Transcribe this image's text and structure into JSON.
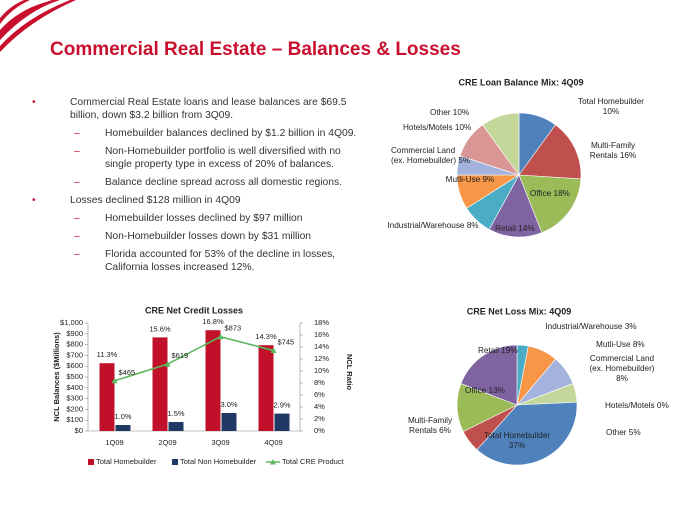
{
  "title": "Commercial Real Estate – Balances & Losses",
  "bullets": [
    {
      "text": "Commercial Real Estate loans and lease balances are $69.5 billion, down $3.2 billion from 3Q09.",
      "sub": [
        "Homebuilder balances declined by $1.2 billion in 4Q09.",
        "Non-Homebuilder portfolio is well diversified with no single property type in excess of 20% of balances.",
        "Balance decline spread across all domestic regions."
      ]
    },
    {
      "text": "Losses declined $128 million in 4Q09",
      "sub": [
        "Homebuilder losses declined by $97 million",
        "Non-Homebuilder losses down by $31 million",
        "Florida accounted for 53% of the decline in losses, California losses increased 12%."
      ]
    }
  ],
  "chart_data": [
    {
      "type": "pie",
      "title": "CRE Loan Balance Mix: 4Q09",
      "categories": [
        "Total Homebuilder",
        "Multi-Family Rentals",
        "Office",
        "Retail",
        "Industrial/Warehouse",
        "Mutli-Use",
        "Commercial Land (ex. Homebuilder)",
        "Hotels/Motels",
        "Other"
      ],
      "values": [
        10,
        16,
        18,
        14,
        8,
        9,
        5,
        10,
        10
      ],
      "value_labels": [
        "10%",
        "16%",
        "18%",
        "14%",
        "8%",
        "9%",
        "5%",
        "10%",
        "10%"
      ],
      "colors": [
        "#4f81bd",
        "#c0504d",
        "#9bbb59",
        "#8064a2",
        "#4bacc6",
        "#f79646",
        "#a3b3dd",
        "#da9694",
        "#c4d79b"
      ]
    },
    {
      "type": "combo",
      "title": "CRE Net Credit Losses",
      "categories": [
        "1Q09",
        "2Q09",
        "3Q09",
        "4Q09"
      ],
      "y_label": "NCL Balances ($Millions)",
      "y2_label": "NCL Ratio",
      "ylim": [
        0,
        1000
      ],
      "yticks": [
        {
          "value": 0,
          "label": "$0"
        },
        {
          "value": 100,
          "label": "$100"
        },
        {
          "value": 200,
          "label": "$200"
        },
        {
          "value": 300,
          "label": "$300"
        },
        {
          "value": 400,
          "label": "$400"
        },
        {
          "value": 500,
          "label": "$500"
        },
        {
          "value": 600,
          "label": "$600"
        },
        {
          "value": 700,
          "label": "$700"
        },
        {
          "value": 800,
          "label": "$800"
        },
        {
          "value": 900,
          "label": "$900"
        },
        {
          "value": 1000,
          "label": "$1,000"
        }
      ],
      "y2lim": [
        0,
        18
      ],
      "y2ticks": [
        {
          "value": 0,
          "label": "0%"
        },
        {
          "value": 2,
          "label": "2%"
        },
        {
          "value": 4,
          "label": "4%"
        },
        {
          "value": 6,
          "label": "6%"
        },
        {
          "value": 8,
          "label": "8%"
        },
        {
          "value": 10,
          "label": "10%"
        },
        {
          "value": 12,
          "label": "12%"
        },
        {
          "value": 14,
          "label": "14%"
        },
        {
          "value": 16,
          "label": "16%"
        },
        {
          "value": 18,
          "label": "18%"
        }
      ],
      "grid": false,
      "series": [
        {
          "name": "Total Homebuilder",
          "type": "bar",
          "axis": "y2",
          "color": "#c0102a",
          "values": [
            11.3,
            15.6,
            16.8,
            14.3
          ],
          "value_labels": [
            "11.3%",
            "15.6%",
            "16.8%",
            "14.3%"
          ]
        },
        {
          "name": "Total Non Homebuilder",
          "type": "bar",
          "axis": "y2",
          "color": "#1f3864",
          "values": [
            1.0,
            1.5,
            3.0,
            2.9
          ],
          "value_labels": [
            "1.0%",
            "1.5%",
            "3.0%",
            "2.9%"
          ]
        },
        {
          "name": "Total CRE Product",
          "type": "line",
          "color": "#5cb85c",
          "values": [
            465,
            619,
            873,
            745
          ],
          "value_labels": [
            "$465",
            "$619",
            "$873",
            "$745"
          ]
        }
      ]
    },
    {
      "type": "pie",
      "title": "CRE Net Loss Mix: 4Q09",
      "categories": [
        "Industrial/Warehouse",
        "Mutli-Use",
        "Commercial Land (ex. Homebuilder)",
        "Hotels/Motels",
        "Other",
        "Total Homebuilder",
        "Multi-Family Rentals",
        "Office",
        "Retail"
      ],
      "values": [
        3,
        8,
        8,
        0,
        5,
        37,
        6,
        13,
        19
      ],
      "value_labels": [
        "3%",
        "8%",
        "8%",
        "0%",
        "5%",
        "37%",
        "6%",
        "13%",
        "19%"
      ],
      "colors": [
        "#4bacc6",
        "#f79646",
        "#a3b3dd",
        "#da9694",
        "#c4d79b",
        "#4f81bd",
        "#c0504d",
        "#9bbb59",
        "#8064a2"
      ]
    }
  ]
}
